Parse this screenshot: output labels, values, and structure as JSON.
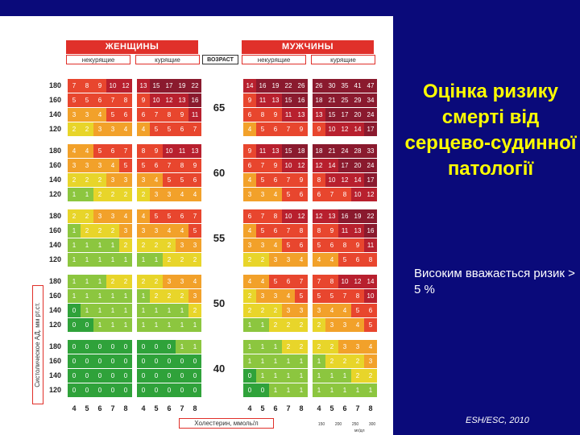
{
  "slide": {
    "title": "Оцінка ризику смерті від серцево-судинної патології",
    "note": "Високим вважається ризик > 5 %",
    "source": "ESH/ESC, 2010"
  },
  "chart_data": {
    "type": "table",
    "headers": {
      "women": "ЖЕНЩИНЫ",
      "men": "МУЖЧИНЫ"
    },
    "subheaders": {
      "non_smoking": "некурящие",
      "smoking": "курящие",
      "age": "ВОЗРАСТ"
    },
    "ylabel": "Систолическое АД, мм рт.ст.",
    "xlabel": "Холестерин, ммоль/л",
    "x_ticks": [
      "4",
      "5",
      "6",
      "7",
      "8"
    ],
    "mg_ticks": [
      "150",
      "200",
      "250",
      "300"
    ],
    "mg_unit": "мг/дл",
    "sbp_levels": [
      "180",
      "160",
      "140",
      "120"
    ],
    "colors": {
      "green": "#2fa23a",
      "lightgreen": "#8cc63f",
      "yellow": "#e8d52a",
      "orange": "#f2a12a",
      "red": "#e8462e",
      "darkred": "#b8202e",
      "maroon": "#8a1a2e"
    },
    "age_bands": [
      {
        "age": "65",
        "women_non": [
          [
            "7",
            "8",
            "9",
            "10",
            "12"
          ],
          [
            "5",
            "5",
            "6",
            "7",
            "8"
          ],
          [
            "3",
            "3",
            "4",
            "5",
            "6"
          ],
          [
            "2",
            "2",
            "3",
            "3",
            "4"
          ]
        ],
        "women_smk": [
          [
            "13",
            "15",
            "17",
            "19",
            "22"
          ],
          [
            "9",
            "10",
            "12",
            "13",
            "16"
          ],
          [
            "6",
            "7",
            "8",
            "9",
            "11"
          ],
          [
            "4",
            "5",
            "5",
            "6",
            "7"
          ]
        ],
        "men_non": [
          [
            "14",
            "16",
            "19",
            "22",
            "26"
          ],
          [
            "9",
            "11",
            "13",
            "15",
            "16"
          ],
          [
            "6",
            "8",
            "9",
            "11",
            "13"
          ],
          [
            "4",
            "5",
            "6",
            "7",
            "9"
          ]
        ],
        "men_smk": [
          [
            "26",
            "30",
            "35",
            "41",
            "47"
          ],
          [
            "18",
            "21",
            "25",
            "29",
            "34"
          ],
          [
            "13",
            "15",
            "17",
            "20",
            "24"
          ],
          [
            "9",
            "10",
            "12",
            "14",
            "17"
          ]
        ]
      },
      {
        "age": "60",
        "women_non": [
          [
            "4",
            "4",
            "5",
            "6",
            "7"
          ],
          [
            "3",
            "3",
            "3",
            "4",
            "5"
          ],
          [
            "2",
            "2",
            "2",
            "3",
            "3"
          ],
          [
            "1",
            "1",
            "2",
            "2",
            "2"
          ]
        ],
        "women_smk": [
          [
            "8",
            "9",
            "10",
            "11",
            "13"
          ],
          [
            "5",
            "6",
            "7",
            "8",
            "9"
          ],
          [
            "3",
            "4",
            "5",
            "5",
            "6"
          ],
          [
            "2",
            "3",
            "3",
            "4",
            "4"
          ]
        ],
        "men_non": [
          [
            "9",
            "11",
            "13",
            "15",
            "18"
          ],
          [
            "6",
            "7",
            "9",
            "10",
            "12"
          ],
          [
            "4",
            "5",
            "6",
            "7",
            "9"
          ],
          [
            "3",
            "3",
            "4",
            "5",
            "6"
          ]
        ],
        "men_smk": [
          [
            "18",
            "21",
            "24",
            "28",
            "33"
          ],
          [
            "12",
            "14",
            "17",
            "20",
            "24"
          ],
          [
            "8",
            "10",
            "12",
            "14",
            "17"
          ],
          [
            "6",
            "7",
            "8",
            "10",
            "12"
          ]
        ]
      },
      {
        "age": "55",
        "women_non": [
          [
            "2",
            "2",
            "3",
            "3",
            "4"
          ],
          [
            "1",
            "2",
            "2",
            "2",
            "3"
          ],
          [
            "1",
            "1",
            "1",
            "1",
            "2"
          ],
          [
            "1",
            "1",
            "1",
            "1",
            "1"
          ]
        ],
        "women_smk": [
          [
            "4",
            "5",
            "5",
            "6",
            "7"
          ],
          [
            "3",
            "3",
            "4",
            "4",
            "5"
          ],
          [
            "2",
            "2",
            "2",
            "3",
            "3"
          ],
          [
            "1",
            "1",
            "2",
            "2",
            "2"
          ]
        ],
        "men_non": [
          [
            "6",
            "7",
            "8",
            "10",
            "12"
          ],
          [
            "4",
            "5",
            "6",
            "7",
            "8"
          ],
          [
            "3",
            "3",
            "4",
            "5",
            "6"
          ],
          [
            "2",
            "2",
            "3",
            "3",
            "4"
          ]
        ],
        "men_smk": [
          [
            "12",
            "13",
            "16",
            "19",
            "22"
          ],
          [
            "8",
            "9",
            "11",
            "13",
            "16"
          ],
          [
            "5",
            "6",
            "8",
            "9",
            "11"
          ],
          [
            "4",
            "4",
            "5",
            "6",
            "8"
          ]
        ]
      },
      {
        "age": "50",
        "women_non": [
          [
            "1",
            "1",
            "1",
            "2",
            "2"
          ],
          [
            "1",
            "1",
            "1",
            "1",
            "1"
          ],
          [
            "0",
            "1",
            "1",
            "1",
            "1"
          ],
          [
            "0",
            "0",
            "1",
            "1",
            "1"
          ]
        ],
        "women_smk": [
          [
            "2",
            "2",
            "3",
            "3",
            "4"
          ],
          [
            "1",
            "2",
            "2",
            "2",
            "3"
          ],
          [
            "1",
            "1",
            "1",
            "1",
            "2"
          ],
          [
            "1",
            "1",
            "1",
            "1",
            "1"
          ]
        ],
        "men_non": [
          [
            "4",
            "4",
            "5",
            "6",
            "7"
          ],
          [
            "2",
            "3",
            "3",
            "4",
            "5"
          ],
          [
            "2",
            "2",
            "2",
            "3",
            "3"
          ],
          [
            "1",
            "1",
            "2",
            "2",
            "2"
          ]
        ],
        "men_smk": [
          [
            "7",
            "8",
            "10",
            "12",
            "14"
          ],
          [
            "5",
            "5",
            "7",
            "8",
            "10"
          ],
          [
            "3",
            "4",
            "4",
            "5",
            "6"
          ],
          [
            "2",
            "3",
            "3",
            "4",
            "5"
          ]
        ]
      },
      {
        "age": "40",
        "women_non": [
          [
            "0",
            "0",
            "0",
            "0",
            "0"
          ],
          [
            "0",
            "0",
            "0",
            "0",
            "0"
          ],
          [
            "0",
            "0",
            "0",
            "0",
            "0"
          ],
          [
            "0",
            "0",
            "0",
            "0",
            "0"
          ]
        ],
        "women_smk": [
          [
            "0",
            "0",
            "0",
            "1",
            "1"
          ],
          [
            "0",
            "0",
            "0",
            "0",
            "0"
          ],
          [
            "0",
            "0",
            "0",
            "0",
            "0"
          ],
          [
            "0",
            "0",
            "0",
            "0",
            "0"
          ]
        ],
        "men_non": [
          [
            "1",
            "1",
            "1",
            "2",
            "2"
          ],
          [
            "1",
            "1",
            "1",
            "1",
            "1"
          ],
          [
            "0",
            "1",
            "1",
            "1",
            "1"
          ],
          [
            "0",
            "0",
            "1",
            "1",
            "1"
          ]
        ],
        "men_smk": [
          [
            "2",
            "2",
            "3",
            "3",
            "4"
          ],
          [
            "1",
            "2",
            "2",
            "2",
            "3"
          ],
          [
            "1",
            "1",
            "1",
            "2",
            "2"
          ],
          [
            "1",
            "1",
            "1",
            "1",
            "1"
          ]
        ]
      }
    ]
  }
}
